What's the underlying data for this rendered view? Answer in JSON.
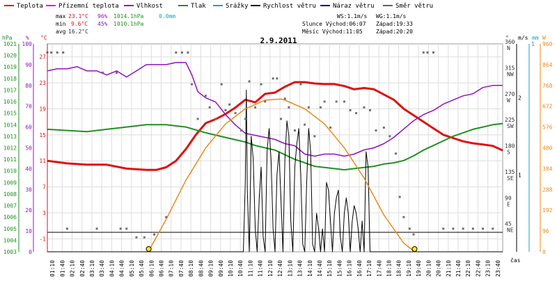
{
  "legend": [
    {
      "key": "temp",
      "label": "Teplota",
      "color": "#e01010"
    },
    {
      "key": "feels",
      "label": "Přízemní teplota",
      "color": "#e000e0"
    },
    {
      "key": "hum",
      "label": "Vlhkost",
      "color": "#9010c0"
    },
    {
      "key": "press",
      "label": "Tlak",
      "color": "#209020"
    },
    {
      "key": "rain",
      "label": "Srážky",
      "color": "#10a0c0"
    },
    {
      "key": "wind",
      "label": "Rychlost větru",
      "color": "#000000"
    },
    {
      "key": "gust",
      "label": "Náraz větru",
      "color": "#000080"
    },
    {
      "key": "dir",
      "label": "Směr větru",
      "color": "#606060"
    }
  ],
  "stats": {
    "max_label": "max",
    "max_temp": "23.1°C",
    "max_hum": "96%",
    "max_press": "1014.1hPa",
    "max_rain": "0.0mm",
    "min_label": "min",
    "min_temp": "9.6°C",
    "min_hum": "45%",
    "min_press": "1010.1hPa",
    "avg_label": "avg",
    "avg_temp": "16.2°C"
  },
  "info": {
    "ws": "WS:1.1m/s",
    "wg": "WG:1.1m/s",
    "sun_rise": "Slunce Východ:06:07",
    "sun_set": "Západ:19:33",
    "moon_rise": "Měsíc  Východ:11:05",
    "moon_set": "Západ:20:20"
  },
  "title": "2.9.2011",
  "time_axis_label": "čas",
  "colors": {
    "temp": "#e01010",
    "hum": "#9010c0",
    "press": "#209020",
    "wind": "#000000",
    "dir": "#707070",
    "sun": "#e88a1a",
    "rain": "#10a0c0",
    "grid": "#dddddd"
  },
  "axes": {
    "hpa_unit": "hPa",
    "pct_unit": "%",
    "c_unit": "°C",
    "deg_unit": "°",
    "ms_unit": "m/s",
    "mm_unit": "mm",
    "w_unit": "W",
    "hpa_ticks": [
      "1021",
      "1020",
      "1019",
      "1018",
      "1017",
      "1016",
      "1015",
      "1014",
      "1013",
      "1012",
      "1011",
      "1010",
      "1009",
      "1008",
      "1007",
      "1006",
      "1005",
      "1004",
      "1003"
    ],
    "pct_ticks": [
      "100",
      "90",
      "80",
      "70",
      "60",
      "50",
      "40",
      "30",
      "20",
      "10",
      "0"
    ],
    "c_ticks": [
      "27",
      "23",
      "19",
      "15",
      "11",
      "7",
      "3",
      "-1"
    ],
    "dir_ticks": [
      "360 N",
      "315 NW",
      "270 W",
      "225 SW",
      "180 S",
      "135 SE",
      "90 E",
      "45 NE"
    ],
    "ms_ticks": [
      "1",
      "2"
    ],
    "mm_ticks": [
      "1"
    ],
    "w_ticks": [
      "960",
      "864",
      "768",
      "672",
      "576",
      "480",
      "384",
      "288",
      "192",
      "96",
      "0"
    ],
    "time_ticks": [
      "01:10",
      "01:40",
      "02:10",
      "02:40",
      "03:10",
      "03:40",
      "04:10",
      "04:40",
      "05:10",
      "05:40",
      "06:10",
      "06:40",
      "07:10",
      "07:40",
      "08:10",
      "08:40",
      "09:10",
      "09:40",
      "10:10",
      "10:40",
      "11:10",
      "11:40",
      "12:10",
      "12:40",
      "13:10",
      "13:40",
      "14:10",
      "14:40",
      "15:10",
      "15:40",
      "16:10",
      "16:40",
      "17:10",
      "17:40",
      "18:10",
      "18:40",
      "19:10",
      "19:40",
      "20:10",
      "20:40",
      "21:10",
      "21:40",
      "22:10",
      "22:40",
      "23:10",
      "23:40"
    ]
  },
  "chart_data": {
    "type": "line",
    "title": "2.9.2011",
    "x_range_h": [
      1.0,
      24.0
    ],
    "series": [
      {
        "name": "Teplota",
        "unit": "°C",
        "x_h": [
          1,
          2,
          3,
          4,
          5,
          6,
          6.5,
          7,
          7.5,
          8,
          8.5,
          9,
          9.5,
          10,
          10.5,
          11,
          11.5,
          12,
          12.5,
          13,
          13.5,
          14,
          14.5,
          15,
          15.5,
          16,
          16.5,
          17,
          17.5,
          18,
          18.5,
          19,
          19.5,
          20,
          20.5,
          21,
          21.5,
          22,
          22.5,
          23,
          23.5,
          24
        ],
        "values": [
          11,
          10.6,
          10.4,
          10.4,
          9.8,
          9.6,
          9.6,
          10,
          11,
          12.8,
          15,
          16.8,
          17.4,
          18.2,
          19.2,
          20.4,
          20,
          21.3,
          21.5,
          22.4,
          23.1,
          23.1,
          22.9,
          22.8,
          22.8,
          22.5,
          22,
          22.2,
          22,
          21.2,
          20.4,
          19,
          18,
          17,
          16,
          15,
          14.5,
          14,
          13.7,
          13.5,
          13.3,
          12.6
        ]
      },
      {
        "name": "Vlhkost",
        "unit": "%",
        "x_h": [
          1,
          1.5,
          2,
          2.5,
          3,
          3.5,
          4,
          4.5,
          5,
          5.5,
          6,
          6.5,
          7,
          7.5,
          8,
          8.3,
          8.6,
          9,
          9.5,
          10,
          10.5,
          11,
          11.5,
          12,
          12.5,
          13,
          13.5,
          14,
          14.5,
          15,
          15.5,
          16,
          16.5,
          17,
          17.5,
          18,
          18.5,
          19,
          19.5,
          20,
          20.5,
          21,
          21.5,
          22,
          22.5,
          23,
          23.5,
          24
        ],
        "values": [
          87,
          88,
          88,
          89,
          87,
          87,
          85,
          87,
          84,
          87,
          90,
          90,
          90,
          91,
          91,
          85,
          77,
          74,
          72,
          66,
          61,
          57,
          56,
          55,
          54,
          52,
          51,
          47,
          46,
          47,
          47,
          46,
          47,
          49,
          50,
          52,
          55,
          59,
          63,
          66,
          68,
          71,
          73,
          75,
          76,
          79,
          80,
          80
        ]
      },
      {
        "name": "Tlak",
        "unit": "hPa",
        "x_h": [
          1,
          2,
          3,
          4,
          5,
          6,
          7,
          8,
          9,
          10,
          10.5,
          11,
          11.5,
          12,
          12.5,
          13,
          13.5,
          14,
          14.5,
          15,
          15.5,
          16,
          16.5,
          17,
          17.5,
          18,
          18.5,
          19,
          19.5,
          20,
          20.5,
          21,
          21.5,
          22,
          22.5,
          23,
          23.5,
          24
        ],
        "values": [
          1013.6,
          1013.5,
          1013.4,
          1013.6,
          1013.8,
          1014.0,
          1014.0,
          1013.8,
          1013.3,
          1012.9,
          1012.7,
          1012.5,
          1012.2,
          1012.0,
          1011.8,
          1011.4,
          1011.0,
          1010.7,
          1010.4,
          1010.3,
          1010.2,
          1010.1,
          1010.2,
          1010.3,
          1010.4,
          1010.6,
          1010.7,
          1010.9,
          1011.3,
          1011.8,
          1012.2,
          1012.6,
          1013.0,
          1013.3,
          1013.6,
          1013.8,
          1014.0,
          1014.1
        ]
      },
      {
        "name": "Rychlost větru",
        "unit": "m/s",
        "x_h": [
          1,
          10.9,
          11.0,
          11.05,
          11.1,
          11.2,
          11.3,
          11.4,
          11.5,
          11.6,
          11.7,
          11.8,
          11.9,
          12.0,
          12.1,
          12.2,
          12.3,
          12.4,
          12.5,
          12.6,
          12.7,
          12.8,
          12.9,
          13.0,
          13.1,
          13.2,
          13.3,
          13.4,
          13.5,
          13.6,
          13.7,
          13.8,
          13.9,
          14.0,
          14.1,
          14.2,
          14.3,
          14.4,
          14.5,
          14.6,
          14.7,
          14.8,
          14.9,
          15.0,
          15.1,
          15.2,
          15.3,
          15.4,
          15.5,
          15.6,
          15.7,
          15.8,
          15.9,
          16.0,
          16.1,
          16.2,
          16.3,
          16.4,
          16.5,
          16.6,
          16.7,
          16.8,
          16.9,
          17.0,
          17.1,
          17.2,
          17.3,
          17.4,
          17.5,
          17.6,
          17.7,
          24
        ],
        "values": [
          0,
          0,
          0.9,
          2.1,
          0.8,
          0,
          1.5,
          1.2,
          0.3,
          0,
          0.7,
          1.1,
          0.2,
          0,
          1.3,
          1.6,
          1.2,
          0.3,
          0,
          1.0,
          1.3,
          0.7,
          0,
          1.2,
          1.7,
          1.5,
          0.4,
          0,
          1.1,
          1.4,
          1.6,
          1.0,
          0.1,
          0,
          0.9,
          1.6,
          1.3,
          0.1,
          0,
          0.5,
          0.3,
          0,
          0.3,
          0,
          0.9,
          0.8,
          0.4,
          0,
          0.5,
          0.7,
          0.8,
          0.2,
          0,
          0.5,
          0.7,
          0.5,
          0,
          0.4,
          0.6,
          0.5,
          0.3,
          0,
          0.4,
          0,
          1.3,
          1.1,
          0,
          0,
          0,
          0,
          0,
          0
        ]
      },
      {
        "name": "Slunce",
        "unit": "W",
        "x_h": [
          6.1,
          7,
          8,
          9,
          10,
          11,
          12,
          12.8,
          13,
          14,
          15,
          16,
          17,
          18,
          19,
          19.55
        ],
        "values": [
          0,
          150,
          330,
          480,
          590,
          660,
          700,
          705,
          700,
          660,
          590,
          480,
          340,
          170,
          40,
          0
        ]
      },
      {
        "name": "Směr větru",
        "unit": "°",
        "x_h": [
          1,
          1.2,
          1.5,
          1.8,
          2,
          3.5,
          3.8,
          4.5,
          4.7,
          5,
          5.5,
          5.9,
          6.4,
          7,
          7.5,
          7.8,
          8.1,
          8.3,
          8.6,
          9,
          9.2,
          9.5,
          9.8,
          10,
          10.2,
          10.5,
          10.8,
          11,
          11.2,
          11.5,
          11.8,
          12,
          12.4,
          12.6,
          12.8,
          13,
          13.2,
          13.5,
          13.8,
          14,
          14.2,
          14.5,
          14.8,
          15,
          15.3,
          15.6,
          16,
          16.3,
          16.6,
          17,
          17.3,
          17.6,
          18,
          18.3,
          18.6,
          18.8,
          19,
          19.3,
          19.5,
          20,
          20.2,
          20.5,
          21,
          21.5,
          22,
          22.5,
          23,
          23.5
        ],
        "values": [
          345,
          345,
          345,
          345,
          40,
          40,
          310,
          310,
          40,
          40,
          25,
          25,
          30,
          60,
          345,
          345,
          345,
          290,
          230,
          270,
          250,
          230,
          290,
          245,
          255,
          240,
          210,
          230,
          295,
          250,
          290,
          260,
          300,
          300,
          230,
          265,
          250,
          210,
          290,
          220,
          250,
          200,
          250,
          260,
          215,
          260,
          260,
          245,
          240,
          250,
          245,
          210,
          215,
          200,
          170,
          95,
          60,
          40,
          30,
          345,
          345,
          345,
          40,
          40,
          40,
          40,
          40,
          40
        ]
      }
    ],
    "sunrise_h": 6.12,
    "sunset_h": 19.55
  }
}
